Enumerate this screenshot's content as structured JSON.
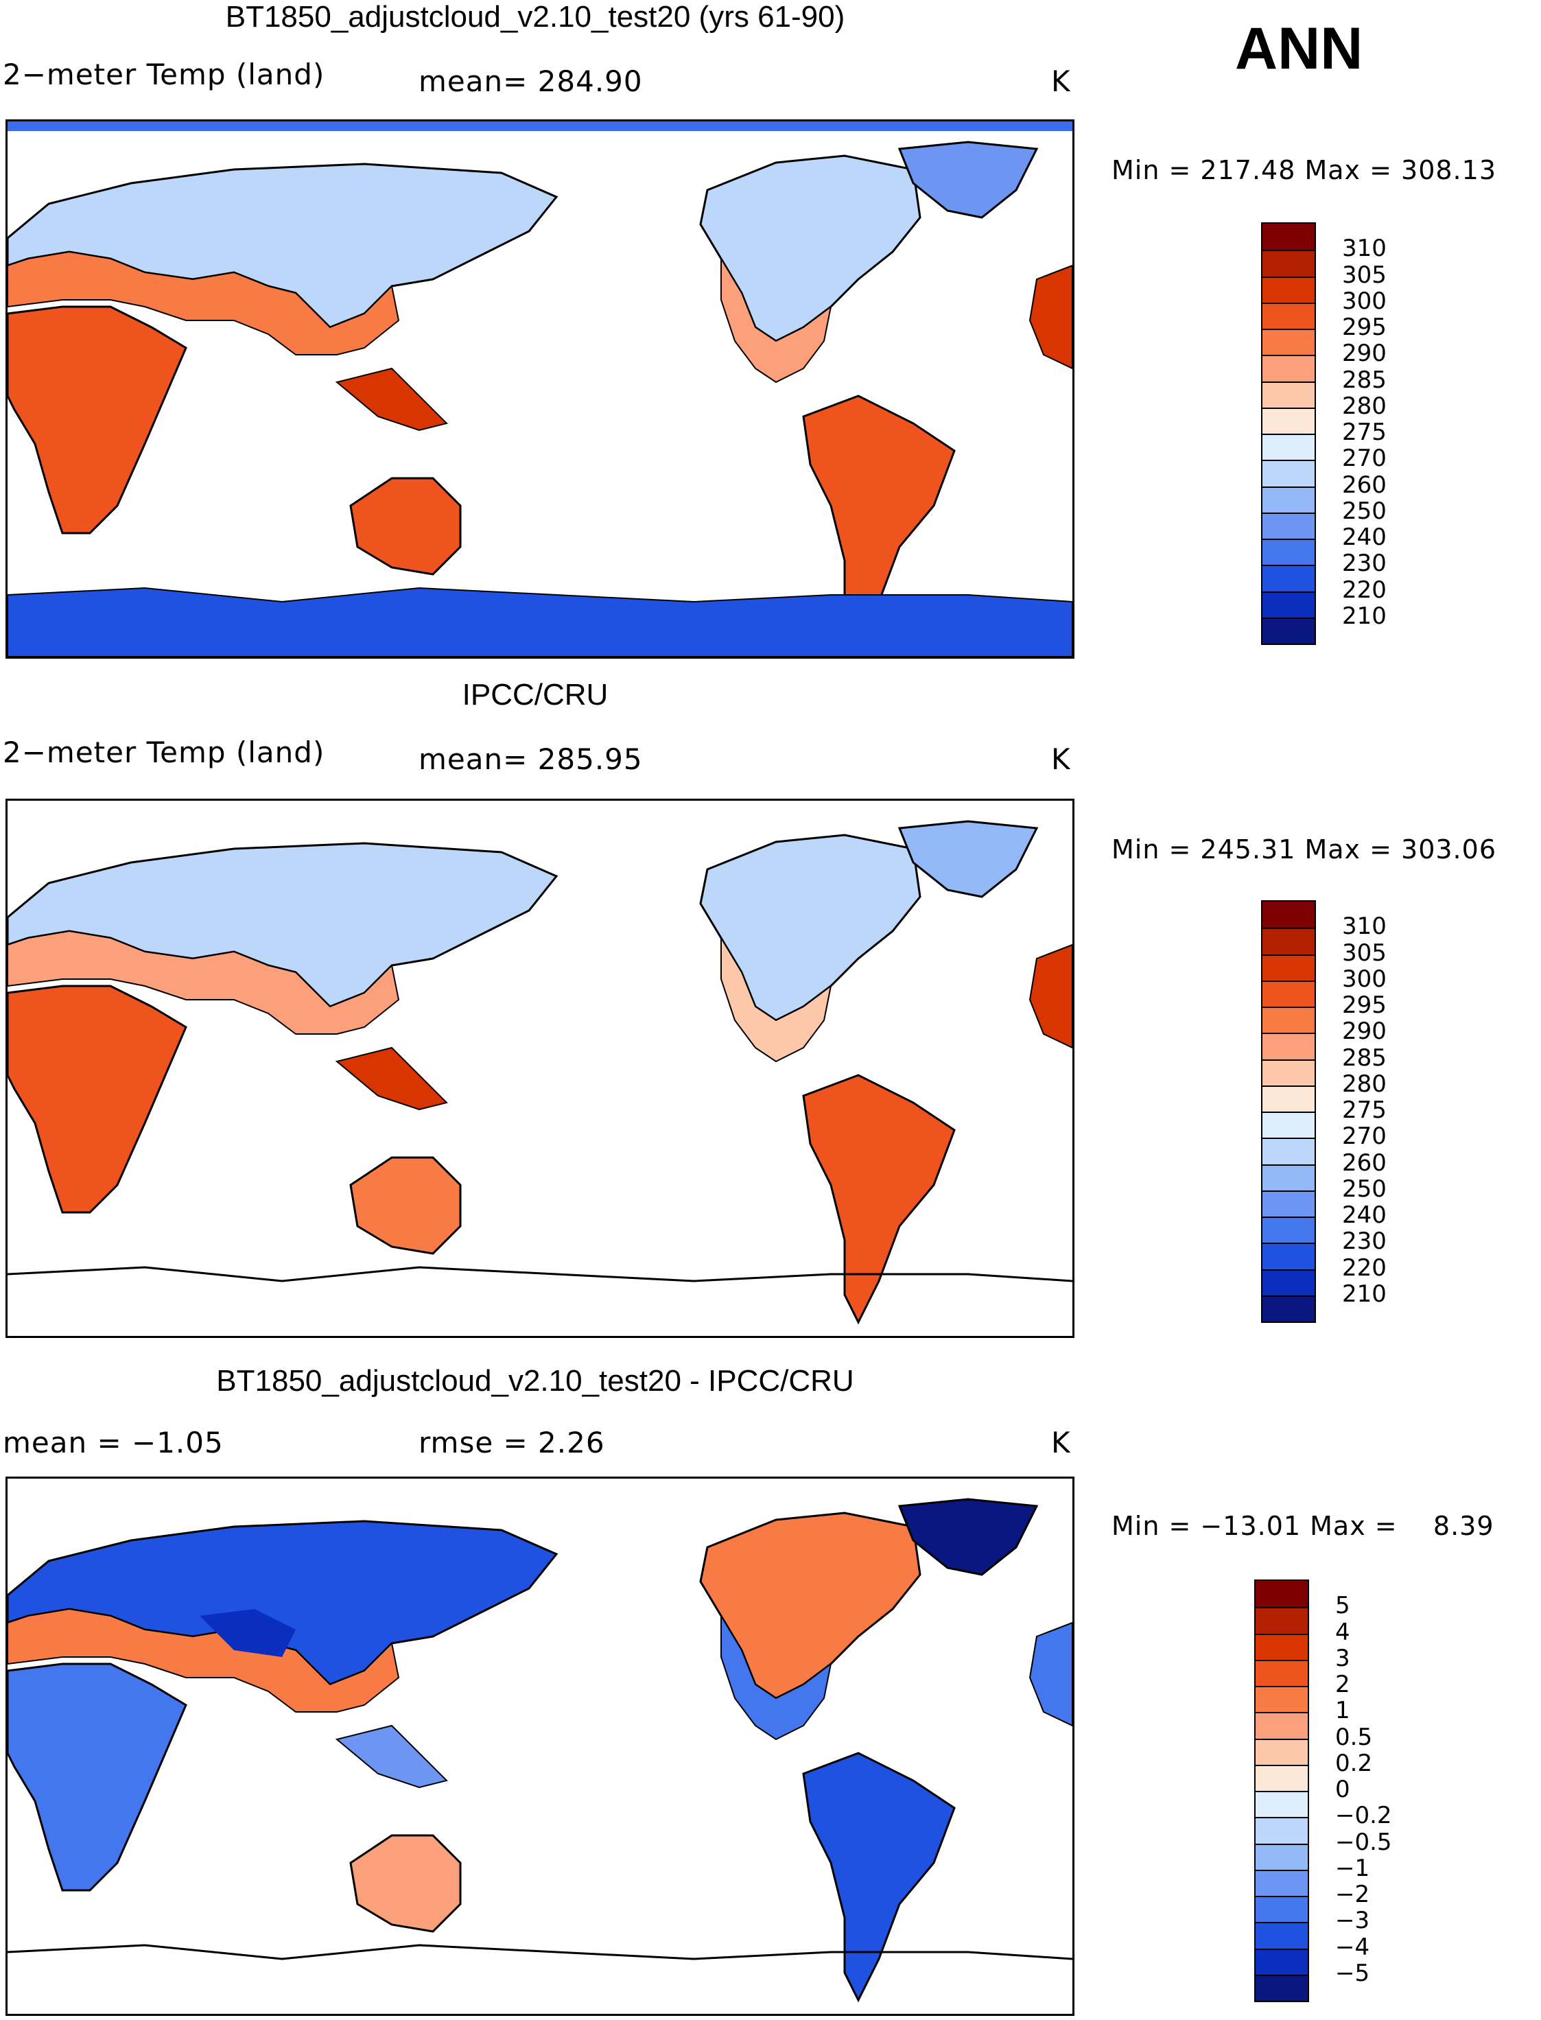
{
  "season_label": "ANN",
  "panels": [
    {
      "title": "BT1850_adjustcloud_v2.10_test20 (yrs 61-90)",
      "left_label": "2−meter Temp (land)",
      "center_label": "mean= 284.90",
      "units": "K",
      "min_max": "Min = 217.48 Max = 308.13",
      "legend_labels": [
        "310",
        "305",
        "300",
        "295",
        "290",
        "285",
        "280",
        "275",
        "270",
        "260",
        "250",
        "240",
        "230",
        "220",
        "210"
      ]
    },
    {
      "title": "IPCC/CRU",
      "left_label": "2−meter Temp (land)",
      "center_label": "mean= 285.95",
      "units": "K",
      "min_max": "Min = 245.31 Max = 303.06",
      "legend_labels": [
        "310",
        "305",
        "300",
        "295",
        "290",
        "285",
        "280",
        "275",
        "270",
        "260",
        "250",
        "240",
        "230",
        "220",
        "210"
      ]
    },
    {
      "title": "BT1850_adjustcloud_v2.10_test20 - IPCC/CRU",
      "left_label": "mean =   −1.05",
      "center_label": "rmse =    2.26",
      "units": "K",
      "min_max": "Min = −13.01 Max =    8.39",
      "legend_labels": [
        "5",
        "4",
        "3",
        "2",
        "1",
        "0.5",
        "0.2",
        "0",
        "−0.2",
        "−0.5",
        "−1",
        "−2",
        "−3",
        "−4",
        "−5"
      ]
    }
  ],
  "colors": {
    "temp_scale": [
      "#7f0000",
      "#b22000",
      "#d93500",
      "#f0541e",
      "#f87a45",
      "#fca07c",
      "#fdc8aa",
      "#fde8d8",
      "#dfeefc",
      "#bdd7fb",
      "#93b8f7",
      "#6c96f2",
      "#4476ee",
      "#1f52e0",
      "#0a2fbf",
      "#0a1780"
    ],
    "diff_scale": [
      "#7f0000",
      "#b22000",
      "#d93500",
      "#f0541e",
      "#f87a45",
      "#fca07c",
      "#fdc8aa",
      "#fde8d8",
      "#dfeefc",
      "#bdd7fb",
      "#93b8f7",
      "#6c96f2",
      "#4476ee",
      "#1f52e0",
      "#0a2fbf",
      "#0a1780"
    ]
  }
}
